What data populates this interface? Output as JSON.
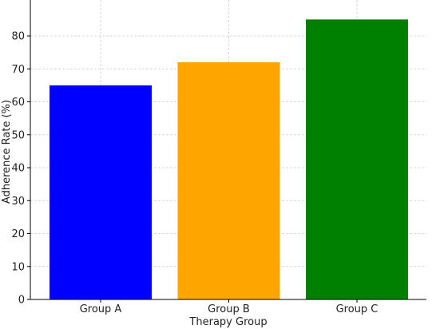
{
  "chart_data": {
    "type": "bar",
    "title": "",
    "xlabel": "Therapy Group",
    "ylabel": "Adherence Rate (%)",
    "categories": [
      "Group A",
      "Group B",
      "Group C"
    ],
    "values": [
      65,
      72,
      85
    ],
    "colors": [
      "#0000ff",
      "#ffa500",
      "#008000"
    ],
    "ylim": [
      0,
      90
    ],
    "yticks": [
      0,
      10,
      20,
      30,
      40,
      50,
      60,
      70,
      80
    ],
    "grid": true
  }
}
